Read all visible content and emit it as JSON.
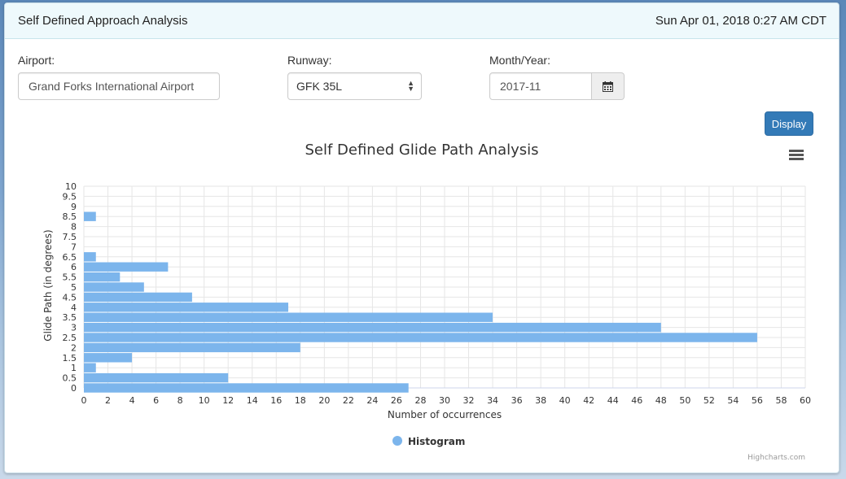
{
  "header": {
    "title": "Self Defined Approach Analysis",
    "datetime": "Sun Apr 01, 2018 0:27 AM CDT"
  },
  "form": {
    "airport_label": "Airport:",
    "airport_value": "Grand Forks International Airport",
    "runway_label": "Runway:",
    "runway_value": "GFK 35L",
    "month_label": "Month/Year:",
    "month_value": "2017-11",
    "display_label": "Display"
  },
  "chart_data": {
    "type": "bar",
    "orientation": "horizontal",
    "title": "Self Defined Glide Path Analysis",
    "xlabel": "Number of occurrences",
    "ylabel": "Glide Path (in degrees)",
    "xlim": [
      0,
      60
    ],
    "xticks": [
      0,
      2,
      4,
      6,
      8,
      10,
      12,
      14,
      16,
      18,
      20,
      22,
      24,
      26,
      28,
      30,
      32,
      34,
      36,
      38,
      40,
      42,
      44,
      46,
      48,
      50,
      52,
      54,
      56,
      58,
      60
    ],
    "ylim": [
      0,
      10
    ],
    "yticks": [
      0,
      0.5,
      1,
      1.5,
      2,
      2.5,
      3,
      3.5,
      4,
      4.5,
      5,
      5.5,
      6,
      6.5,
      7,
      7.5,
      8,
      8.5,
      9,
      9.5,
      10
    ],
    "categories": [
      0,
      0.5,
      1,
      1.5,
      2,
      2.5,
      3,
      3.5,
      4,
      4.5,
      5,
      5.5,
      6,
      6.5,
      7,
      7.5,
      8,
      8.5,
      9,
      9.5,
      10
    ],
    "series": [
      {
        "name": "Histogram",
        "color": "#7cb5ec",
        "values": [
          27,
          12,
          1,
          4,
          18,
          56,
          48,
          34,
          17,
          9,
          5,
          3,
          7,
          1,
          0,
          0,
          0,
          1,
          0,
          0,
          0
        ]
      }
    ],
    "grid": true,
    "legend": "bottom-center",
    "credits": "Highcharts.com"
  },
  "colors": {
    "accent": "#337ab7",
    "bar": "#7cb5ec"
  },
  "icons": {
    "calendar": "calendar-icon",
    "menu": "hamburger-menu-icon",
    "select": "select-arrows-icon"
  }
}
